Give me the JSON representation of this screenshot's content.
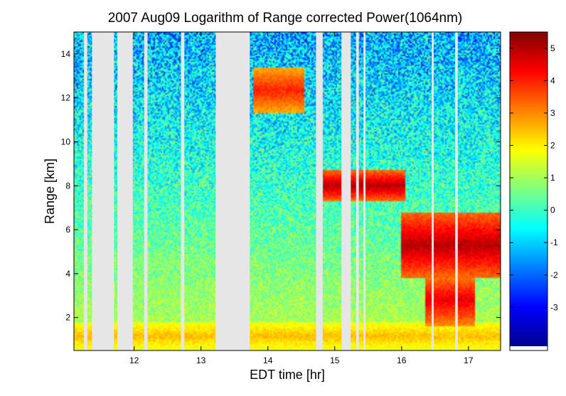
{
  "chart_data": {
    "type": "heatmap",
    "title": "2007 Aug09  Logarithm of Range corrected Power(1064nm)",
    "xlabel": "EDT time [hr]",
    "ylabel": "Range [km]",
    "xlim": [
      11.1,
      17.48
    ],
    "ylim": [
      0.5,
      15.0
    ],
    "x_ticks": [
      12,
      13,
      14,
      15,
      16,
      17
    ],
    "y_ticks": [
      2,
      4,
      6,
      8,
      10,
      12,
      14
    ],
    "colorbar": {
      "colormap": "jet",
      "range": [
        -4.2,
        5.5
      ],
      "ticks": [
        -3,
        -2,
        -1,
        0,
        1,
        2,
        3,
        4,
        5
      ]
    },
    "missing_color": "#e6e6e6",
    "data_gaps_hr": [
      [
        11.25,
        11.3
      ],
      [
        11.37,
        11.7
      ],
      [
        11.75,
        11.98
      ],
      [
        12.15,
        12.2
      ],
      [
        12.7,
        12.75
      ],
      [
        13.22,
        13.73
      ],
      [
        14.72,
        14.82
      ],
      [
        15.1,
        15.24
      ],
      [
        15.32,
        15.36
      ],
      [
        15.43,
        15.46
      ],
      [
        16.45,
        16.48
      ],
      [
        16.8,
        16.84
      ]
    ],
    "features": [
      {
        "kind": "boundary_layer",
        "t": [
          11.1,
          17.48
        ],
        "range_km": [
          0.5,
          1.8
        ],
        "log_power": 2.5
      },
      {
        "kind": "elevated_aerosol_layer",
        "t": [
          11.1,
          14.0
        ],
        "range_km": [
          4.3,
          4.9
        ],
        "log_power": 0.3
      },
      {
        "kind": "elevated_aerosol_layer",
        "t": [
          11.1,
          13.2
        ],
        "range_km": [
          3.0,
          3.5
        ],
        "log_power": 0.5
      },
      {
        "kind": "cloud_layer",
        "t": [
          14.82,
          16.05
        ],
        "range_km": [
          7.3,
          8.7
        ],
        "log_power": 5.0
      },
      {
        "kind": "cloud_layer",
        "t": [
          16.0,
          17.48
        ],
        "range_km": [
          3.8,
          6.8
        ],
        "log_power": 5.0
      },
      {
        "kind": "cloud_layer",
        "t": [
          13.78,
          14.55
        ],
        "range_km": [
          11.3,
          13.4
        ],
        "log_power": 4.0
      },
      {
        "kind": "precipitation_streak",
        "t": [
          16.35,
          17.1
        ],
        "range_km": [
          1.6,
          4.0
        ],
        "log_power": 4.5
      }
    ]
  }
}
